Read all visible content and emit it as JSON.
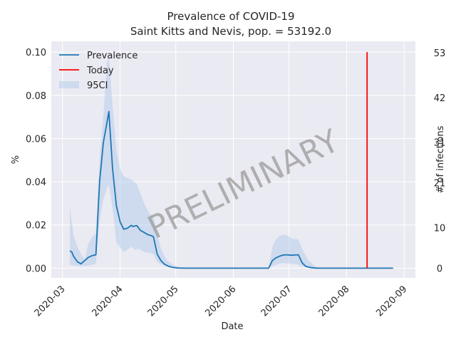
{
  "chart_data": {
    "type": "line",
    "title": "Prevalence of COVID-19",
    "subtitle": "Saint Kitts and Nevis, pop. = 53192.0",
    "xlabel": "Date",
    "ylabel": "%",
    "y2label": "# of infections",
    "watermark": "PRELIMINARY",
    "xlim": [
      "2020-02-24",
      "2020-09-07"
    ],
    "ylim": [
      -0.0045,
      0.105
    ],
    "grid": true,
    "legend_position": "top-left",
    "x_ticks": [
      {
        "date": "2020-03-01",
        "label": "2020-03"
      },
      {
        "date": "2020-04-01",
        "label": "2020-04"
      },
      {
        "date": "2020-05-01",
        "label": "2020-05"
      },
      {
        "date": "2020-06-01",
        "label": "2020-06"
      },
      {
        "date": "2020-07-01",
        "label": "2020-07"
      },
      {
        "date": "2020-08-01",
        "label": "2020-08"
      },
      {
        "date": "2020-09-01",
        "label": "2020-09"
      }
    ],
    "y_ticks": [
      {
        "value": 0.0,
        "label": "0.00"
      },
      {
        "value": 0.02,
        "label": "0.02"
      },
      {
        "value": 0.04,
        "label": "0.04"
      },
      {
        "value": 0.06,
        "label": "0.06"
      },
      {
        "value": 0.08,
        "label": "0.08"
      },
      {
        "value": 0.1,
        "label": "0.10"
      }
    ],
    "y2_ticks": [
      {
        "value": 0,
        "label": "0"
      },
      {
        "value": 10,
        "label": "10"
      },
      {
        "value": 21,
        "label": "21"
      },
      {
        "value": 31,
        "label": "31"
      },
      {
        "value": 42,
        "label": "42"
      },
      {
        "value": 53,
        "label": "53"
      }
    ],
    "y2lim": [
      -2.394,
      55.85
    ],
    "series": [
      {
        "name": "Prevalence",
        "color": "#1f77b4",
        "points": [
          [
            "2020-03-05",
            0.008
          ],
          [
            "2020-03-06",
            0.0075
          ],
          [
            "2020-03-07",
            0.0055
          ],
          [
            "2020-03-09",
            0.003
          ],
          [
            "2020-03-11",
            0.002
          ],
          [
            "2020-03-13",
            0.0035
          ],
          [
            "2020-03-15",
            0.005
          ],
          [
            "2020-03-17",
            0.0058
          ],
          [
            "2020-03-19",
            0.0062
          ],
          [
            "2020-03-21",
            0.04
          ],
          [
            "2020-03-23",
            0.058
          ],
          [
            "2020-03-25",
            0.0675
          ],
          [
            "2020-03-26",
            0.0725
          ],
          [
            "2020-03-28",
            0.046
          ],
          [
            "2020-03-30",
            0.029
          ],
          [
            "2020-04-01",
            0.0215
          ],
          [
            "2020-04-03",
            0.018
          ],
          [
            "2020-04-05",
            0.0185
          ],
          [
            "2020-04-07",
            0.0198
          ],
          [
            "2020-04-08",
            0.0193
          ],
          [
            "2020-04-10",
            0.0197
          ],
          [
            "2020-04-12",
            0.0175
          ],
          [
            "2020-04-14",
            0.0165
          ],
          [
            "2020-04-16",
            0.0155
          ],
          [
            "2020-04-18",
            0.015
          ],
          [
            "2020-04-19",
            0.0145
          ],
          [
            "2020-04-21",
            0.0065
          ],
          [
            "2020-04-23",
            0.0035
          ],
          [
            "2020-04-25",
            0.0018
          ],
          [
            "2020-04-27",
            0.0009
          ],
          [
            "2020-04-29",
            0.0004
          ],
          [
            "2020-05-02",
            0.0001
          ],
          [
            "2020-05-06",
            0.0
          ],
          [
            "2020-06-20",
            0.0
          ],
          [
            "2020-06-22",
            0.0035
          ],
          [
            "2020-06-24",
            0.0048
          ],
          [
            "2020-06-26",
            0.0056
          ],
          [
            "2020-06-28",
            0.0061
          ],
          [
            "2020-06-30",
            0.0062
          ],
          [
            "2020-07-02",
            0.006
          ],
          [
            "2020-07-04",
            0.0061
          ],
          [
            "2020-07-06",
            0.0062
          ],
          [
            "2020-07-08",
            0.0025
          ],
          [
            "2020-07-10",
            0.0008
          ],
          [
            "2020-07-13",
            0.0002
          ],
          [
            "2020-07-16",
            0.0
          ],
          [
            "2020-08-26",
            0.0
          ]
        ]
      },
      {
        "name": "Today",
        "color": "#ff0000",
        "date": "2020-08-12",
        "y_range": [
          0.0,
          0.1
        ]
      },
      {
        "name": "95CI",
        "color": "#aec7e8",
        "upper": [
          [
            "2020-03-05",
            0.0285
          ],
          [
            "2020-03-07",
            0.015
          ],
          [
            "2020-03-09",
            0.01
          ],
          [
            "2020-03-11",
            0.0065
          ],
          [
            "2020-03-13",
            0.004
          ],
          [
            "2020-03-15",
            0.0115
          ],
          [
            "2020-03-17",
            0.0145
          ],
          [
            "2020-03-19",
            0.016
          ],
          [
            "2020-03-21",
            0.05
          ],
          [
            "2020-03-23",
            0.07
          ],
          [
            "2020-03-25",
            0.0955
          ],
          [
            "2020-03-26",
            0.098
          ],
          [
            "2020-03-28",
            0.075
          ],
          [
            "2020-03-30",
            0.055
          ],
          [
            "2020-04-01",
            0.046
          ],
          [
            "2020-04-03",
            0.0425
          ],
          [
            "2020-04-07",
            0.041
          ],
          [
            "2020-04-10",
            0.039
          ],
          [
            "2020-04-14",
            0.03
          ],
          [
            "2020-04-17",
            0.025
          ],
          [
            "2020-04-19",
            0.024
          ],
          [
            "2020-04-21",
            0.016
          ],
          [
            "2020-04-23",
            0.009
          ],
          [
            "2020-04-26",
            0.004
          ],
          [
            "2020-04-30",
            0.0012
          ],
          [
            "2020-05-05",
            0.0001
          ],
          [
            "2020-05-07",
            0.0
          ],
          [
            "2020-06-20",
            0.0
          ],
          [
            "2020-06-22",
            0.01
          ],
          [
            "2020-06-24",
            0.0135
          ],
          [
            "2020-06-26",
            0.015
          ],
          [
            "2020-06-28",
            0.0155
          ],
          [
            "2020-06-30",
            0.015
          ],
          [
            "2020-07-03",
            0.0135
          ],
          [
            "2020-07-06",
            0.0133
          ],
          [
            "2020-07-08",
            0.009
          ],
          [
            "2020-07-11",
            0.004
          ],
          [
            "2020-07-15",
            0.0008
          ],
          [
            "2020-07-20",
            0.0
          ],
          [
            "2020-08-26",
            0.0
          ]
        ],
        "lower": [
          [
            "2020-08-26",
            0.0
          ],
          [
            "2020-07-20",
            0.0
          ],
          [
            "2020-07-14",
            0.0001
          ],
          [
            "2020-07-08",
            0.0008
          ],
          [
            "2020-07-05",
            0.0018
          ],
          [
            "2020-07-01",
            0.0022
          ],
          [
            "2020-06-27",
            0.0024
          ],
          [
            "2020-06-24",
            0.0015
          ],
          [
            "2020-06-22",
            0.0008
          ],
          [
            "2020-06-20",
            0.0
          ],
          [
            "2020-05-07",
            0.0
          ],
          [
            "2020-04-30",
            0.0002
          ],
          [
            "2020-04-26",
            0.0008
          ],
          [
            "2020-04-23",
            0.0018
          ],
          [
            "2020-04-21",
            0.003
          ],
          [
            "2020-04-19",
            0.0065
          ],
          [
            "2020-04-17",
            0.007
          ],
          [
            "2020-04-14",
            0.0075
          ],
          [
            "2020-04-11",
            0.009
          ],
          [
            "2020-04-09",
            0.0085
          ],
          [
            "2020-04-07",
            0.01
          ],
          [
            "2020-04-05",
            0.0085
          ],
          [
            "2020-04-03",
            0.0075
          ],
          [
            "2020-04-01",
            0.0095
          ],
          [
            "2020-03-30",
            0.012
          ],
          [
            "2020-03-28",
            0.028
          ],
          [
            "2020-03-26",
            0.0385
          ],
          [
            "2020-03-25",
            0.037
          ],
          [
            "2020-03-23",
            0.032
          ],
          [
            "2020-03-21",
            0.022
          ],
          [
            "2020-03-19",
            0.002
          ],
          [
            "2020-03-17",
            0.0015
          ],
          [
            "2020-03-15",
            0.0012
          ],
          [
            "2020-03-13",
            0.001
          ],
          [
            "2020-03-11",
            0.001
          ],
          [
            "2020-03-09",
            0.001
          ],
          [
            "2020-03-07",
            0.0012
          ],
          [
            "2020-03-05",
            0.0015
          ]
        ]
      }
    ]
  }
}
